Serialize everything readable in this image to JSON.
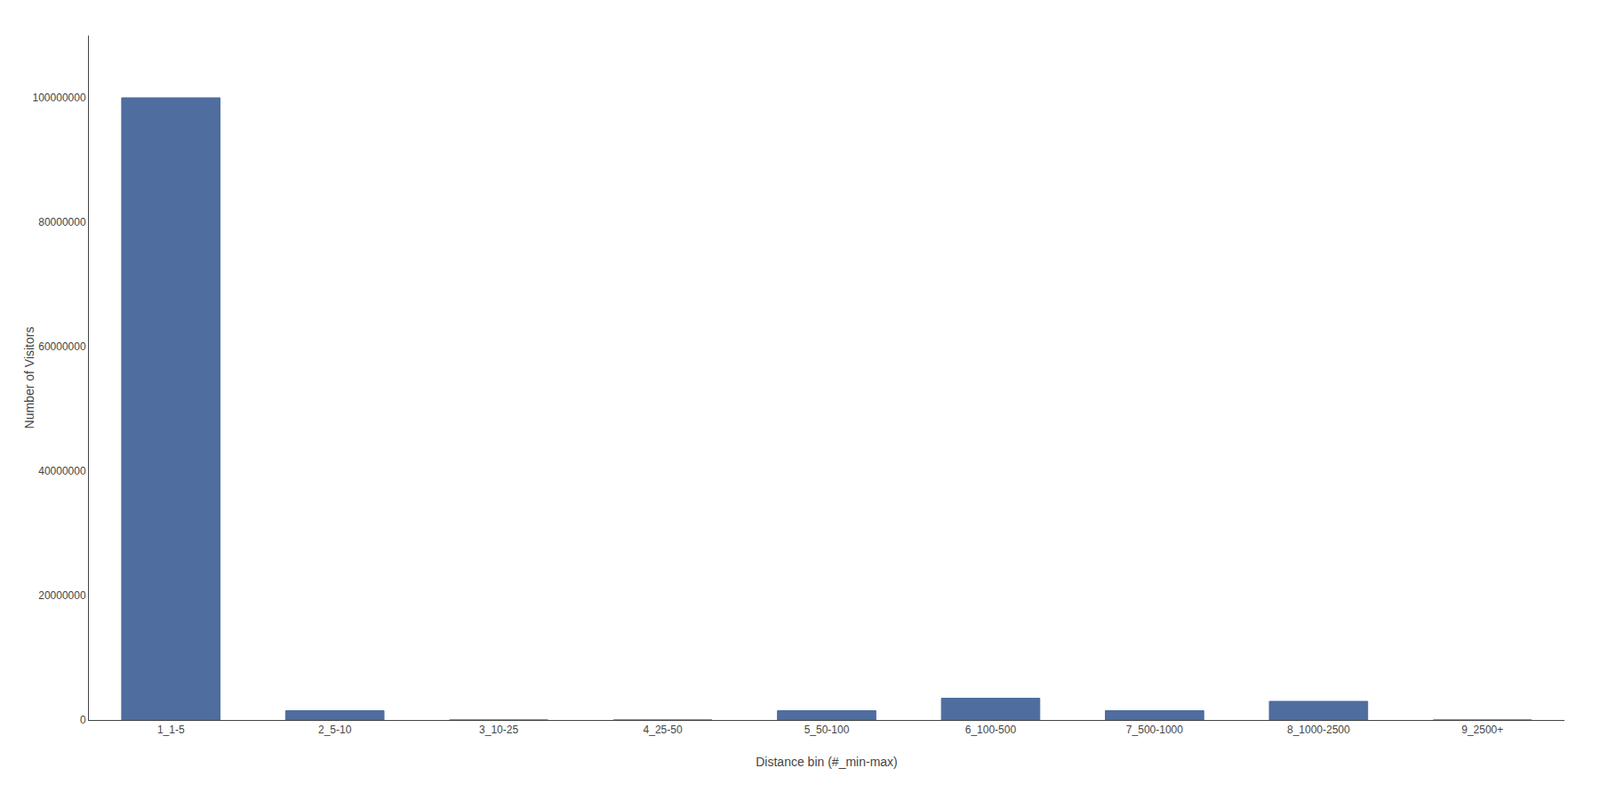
{
  "chart_data": {
    "type": "bar",
    "categories": [
      "1_1-5",
      "2_5-10",
      "3_10-25",
      "4_25-50",
      "5_50-100",
      "6_100-500",
      "7_500-1000",
      "8_1000-2500",
      "9_2500+"
    ],
    "values": [
      100000000,
      1500000,
      0,
      0,
      1500000,
      3500000,
      1500000,
      3000000,
      0
    ],
    "color": "#4f6d9e",
    "xlabel": "Distance bin (#_min-max)",
    "ylabel": "Number of Visitors",
    "ylim": [
      0,
      110000000
    ],
    "yticks": [
      0,
      20000000,
      40000000,
      60000000,
      80000000,
      100000000
    ],
    "grid": false
  }
}
